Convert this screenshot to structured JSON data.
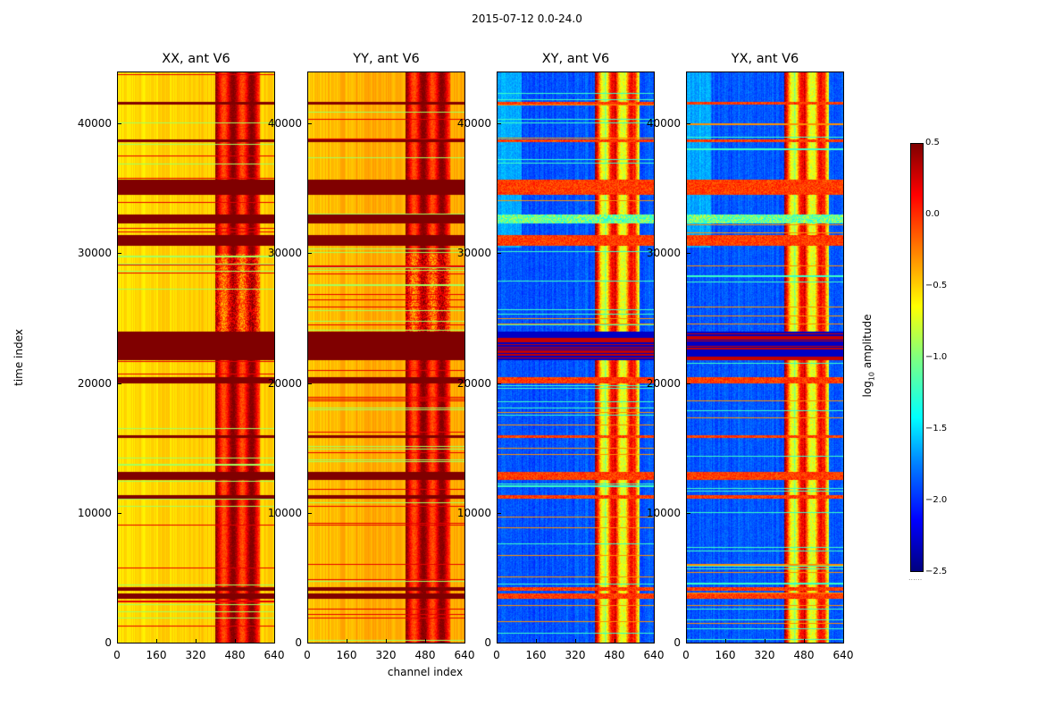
{
  "suptitle": "2015-07-12 0.0-24.0",
  "chart_data": {
    "type": "heatmap",
    "panels": [
      {
        "title": "XX, ant V6",
        "kind": "parallel"
      },
      {
        "title": "YY, ant V6",
        "kind": "parallel"
      },
      {
        "title": "XY, ant V6",
        "kind": "cross"
      },
      {
        "title": "YX, ant V6",
        "kind": "cross"
      }
    ],
    "xlabel": "channel index",
    "ylabel": "time index",
    "xticks": [
      "0",
      "160",
      "320",
      "480",
      "640"
    ],
    "xlim": [
      0,
      640
    ],
    "yticks": [
      "0",
      "10000",
      "20000",
      "30000",
      "40000"
    ],
    "ylim": [
      0,
      44000
    ],
    "colorbar": {
      "label": "log10 amplitude",
      "label_base": "log",
      "label_sub": "10",
      "label_rest": " amplitude",
      "ticks": [
        "0.5",
        "0.0",
        "−0.5",
        "−1.0",
        "−1.5",
        "−2.0",
        "−2.5"
      ],
      "range": [
        -2.5,
        0.5
      ],
      "footer": "......"
    },
    "flagged_time_bands": [
      [
        3400,
        3800
      ],
      [
        4000,
        4300
      ],
      [
        11100,
        11400
      ],
      [
        12600,
        13200
      ],
      [
        15800,
        16000
      ],
      [
        20000,
        20500
      ],
      [
        21800,
        24000
      ],
      [
        30600,
        31400
      ],
      [
        32300,
        33000
      ],
      [
        34500,
        35700
      ],
      [
        38600,
        38800
      ],
      [
        41500,
        41700
      ]
    ],
    "strong_channel_range": [
      400,
      580
    ]
  }
}
